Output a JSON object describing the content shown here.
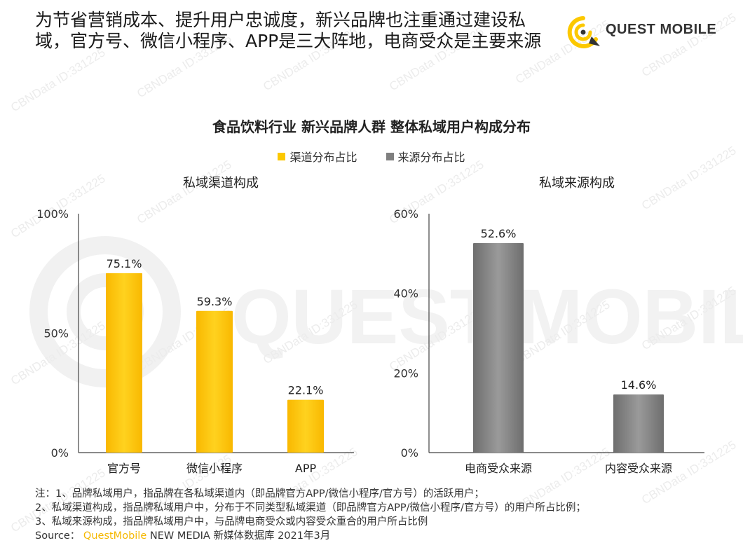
{
  "headline": "为节省营销成本、提升用户忠诚度，新兴品牌也注重通过建设私域，官方号、微信小程序、APP是三大阵地，电商受众是主要来源",
  "logo": {
    "text": "QUEST MOBILE",
    "icon": "quest-mobile-logo-icon"
  },
  "chart_title": "食品饮料行业 新兴品牌人群 整体私域用户构成分布",
  "legend": [
    {
      "label": "渠道分布占比",
      "color": "#fcc800"
    },
    {
      "label": "来源分布占比",
      "color": "#7f7f7f"
    }
  ],
  "chart_data": [
    {
      "type": "bar",
      "title": "私域渠道构成",
      "series_name": "渠道分布占比",
      "categories": [
        "官方号",
        "微信小程序",
        "APP"
      ],
      "values": [
        75.1,
        59.3,
        22.1
      ],
      "value_labels": [
        "75.1%",
        "59.3%",
        "22.1%"
      ],
      "ylim": [
        0,
        100
      ],
      "yticks": [
        0,
        50,
        100
      ],
      "ytick_labels": [
        "0%",
        "50%",
        "100%"
      ],
      "color": "#fcc800",
      "grid": false
    },
    {
      "type": "bar",
      "title": "私域来源构成",
      "series_name": "来源分布占比",
      "categories": [
        "电商受众来源",
        "内容受众来源"
      ],
      "values": [
        52.6,
        14.6
      ],
      "value_labels": [
        "52.6%",
        "14.6%"
      ],
      "ylim": [
        0,
        60
      ],
      "yticks": [
        0,
        20,
        40,
        60
      ],
      "ytick_labels": [
        "0%",
        "20%",
        "40%",
        "60%"
      ],
      "color": "#7f7f7f",
      "grid": false
    }
  ],
  "notes": [
    "注：1、品牌私域用户，指品牌在各私域渠道内（即品牌官方APP/微信小程序/官方号）的活跃用户；",
    "2、私域渠道构成，指品牌私域用户中，分布于不同类型私域渠道（即品牌官方APP/微信小程序/官方号）的用户所占比例；",
    "3、私域来源构成，指品牌私域用户中，与品牌电商受众或内容受众重合的用户所占比例"
  ],
  "source": {
    "prefix": "Source：",
    "brand": "QuestMobile",
    "rest": "NEW MEDIA 新媒体数据库 2021年3月"
  },
  "watermark": {
    "text": "CBNData ID:331225",
    "brand_text": "QUEST MOBILE"
  }
}
